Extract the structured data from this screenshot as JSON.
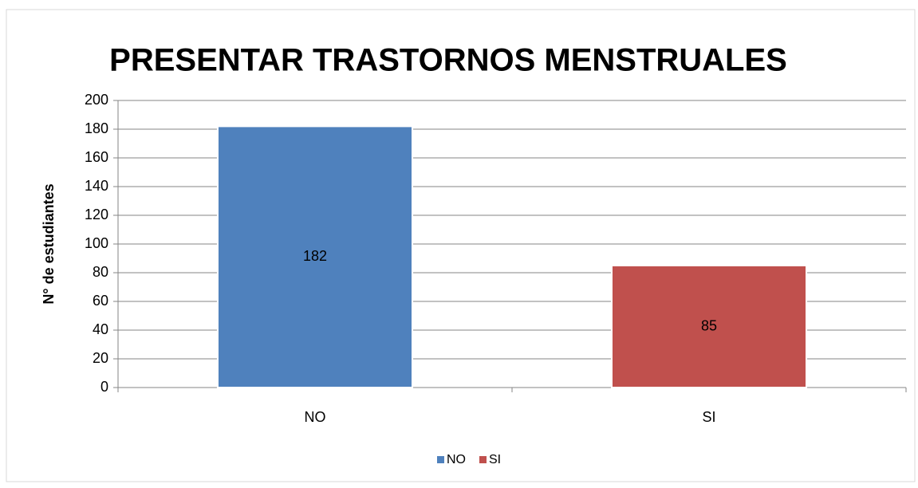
{
  "chart_data": {
    "type": "bar",
    "title": "PRESENTAR TRASTORNOS MENSTRUALES",
    "y_label": "N° de estudiantes",
    "categories": [
      "NO",
      "SI"
    ],
    "values": [
      182,
      85
    ],
    "colors": [
      "#4f81bd",
      "#c0504d"
    ],
    "ylim": [
      0,
      200
    ],
    "yticks": [
      0,
      20,
      40,
      60,
      80,
      100,
      120,
      140,
      160,
      180,
      200
    ],
    "grid": true,
    "legend": "bottom"
  }
}
